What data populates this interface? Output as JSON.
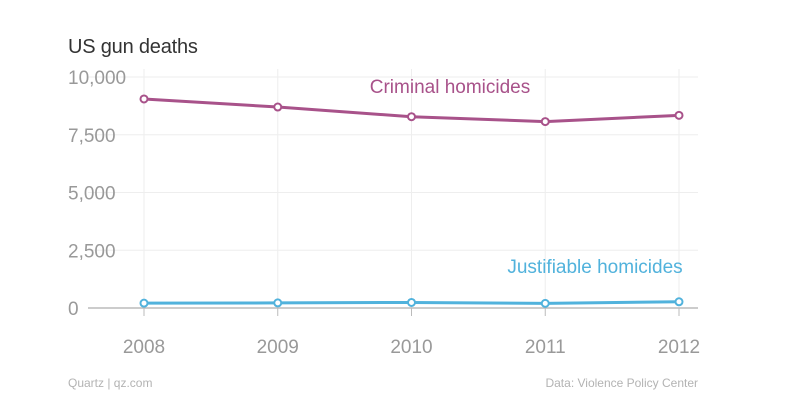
{
  "title": "US gun deaths",
  "footer": {
    "left": "Quartz | qz.com",
    "right": "Data: Violence Policy Center"
  },
  "colors": {
    "criminal": "#a8528a",
    "justifiable": "#51b2dc",
    "grid": "#eeeeee",
    "axis": "#bbbbbb",
    "tick_text": "#999999"
  },
  "chart_data": {
    "type": "line",
    "title": "US gun deaths",
    "x": [
      "2008",
      "2009",
      "2010",
      "2011",
      "2012"
    ],
    "y_ticks": [
      0,
      2500,
      5000,
      7500,
      10000
    ],
    "y_tick_labels": [
      "0",
      "2,500",
      "5,000",
      "7,500",
      "10,000"
    ],
    "ylim": [
      0,
      10000
    ],
    "grid": true,
    "series": [
      {
        "name": "Criminal homicides",
        "color": "#a8528a",
        "values": [
          9050,
          8700,
          8280,
          8070,
          8340
        ]
      },
      {
        "name": "Justifiable homicides",
        "color": "#51b2dc",
        "values": [
          210,
          220,
          240,
          200,
          270
        ]
      }
    ]
  }
}
